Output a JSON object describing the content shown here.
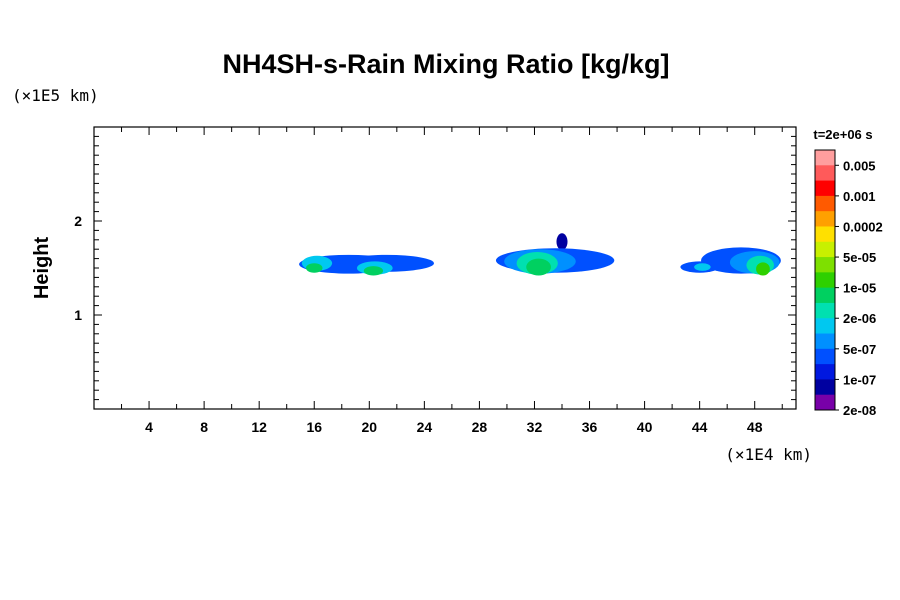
{
  "chart_data": {
    "type": "heatmap",
    "title": "NH4SH-s-Rain Mixing Ratio [kg/kg]",
    "xlabel": "",
    "ylabel": "Height",
    "x_unit": "(×1E4 km)",
    "y_unit": "(×1E5 km)",
    "xlim": [
      0,
      51
    ],
    "ylim": [
      0,
      3
    ],
    "x_ticks": [
      "4",
      "8",
      "12",
      "16",
      "20",
      "24",
      "28",
      "32",
      "36",
      "40",
      "44",
      "48"
    ],
    "y_ticks": [
      "1",
      "2"
    ],
    "time_label": "t=2e+06 s",
    "colorbar": {
      "labels": [
        "0.005",
        "0.001",
        "0.0002",
        "5e-05",
        "1e-05",
        "2e-06",
        "5e-07",
        "1e-07",
        "2e-08"
      ],
      "colors": [
        "#ff9e9e",
        "#ff5a5a",
        "#ff0000",
        "#ff5a00",
        "#ffa000",
        "#ffe000",
        "#c8f000",
        "#7ee000",
        "#2ed000",
        "#00d060",
        "#00e0b0",
        "#00c8f0",
        "#0090ff",
        "#0050ff",
        "#0018e0",
        "#0000a0",
        "#7800a8"
      ]
    },
    "cells": [
      {
        "cx": 18.5,
        "cy": 1.54,
        "rx": 3.6,
        "ry": 0.1,
        "level": 13
      },
      {
        "cx": 21.3,
        "cy": 1.55,
        "rx": 3.4,
        "ry": 0.09,
        "level": 13
      },
      {
        "cx": 16.2,
        "cy": 1.55,
        "rx": 1.1,
        "ry": 0.08,
        "level": 11
      },
      {
        "cx": 20.4,
        "cy": 1.5,
        "rx": 1.3,
        "ry": 0.07,
        "level": 11
      },
      {
        "cx": 16.0,
        "cy": 1.5,
        "rx": 0.6,
        "ry": 0.05,
        "level": 9
      },
      {
        "cx": 20.3,
        "cy": 1.47,
        "rx": 0.7,
        "ry": 0.05,
        "level": 9
      },
      {
        "cx": 33.5,
        "cy": 1.58,
        "rx": 4.3,
        "ry": 0.13,
        "level": 13
      },
      {
        "cx": 32.4,
        "cy": 1.57,
        "rx": 2.6,
        "ry": 0.13,
        "level": 12
      },
      {
        "cx": 32.2,
        "cy": 1.55,
        "rx": 1.5,
        "ry": 0.12,
        "level": 10
      },
      {
        "cx": 32.3,
        "cy": 1.51,
        "rx": 0.9,
        "ry": 0.09,
        "level": 9
      },
      {
        "cx": 35.7,
        "cy": 1.62,
        "rx": 1.2,
        "ry": 0.05,
        "level": 14
      },
      {
        "cx": 34.0,
        "cy": 1.78,
        "rx": 0.4,
        "ry": 0.09,
        "level": 15
      },
      {
        "cx": 47.0,
        "cy": 1.58,
        "rx": 2.9,
        "ry": 0.14,
        "level": 13
      },
      {
        "cx": 48.0,
        "cy": 1.56,
        "rx": 1.8,
        "ry": 0.12,
        "level": 12
      },
      {
        "cx": 48.4,
        "cy": 1.53,
        "rx": 1.0,
        "ry": 0.1,
        "level": 10
      },
      {
        "cx": 48.6,
        "cy": 1.49,
        "rx": 0.5,
        "ry": 0.07,
        "level": 8
      },
      {
        "cx": 44.0,
        "cy": 1.51,
        "rx": 1.4,
        "ry": 0.06,
        "level": 13
      },
      {
        "cx": 44.2,
        "cy": 1.51,
        "rx": 0.6,
        "ry": 0.04,
        "level": 11
      }
    ]
  }
}
